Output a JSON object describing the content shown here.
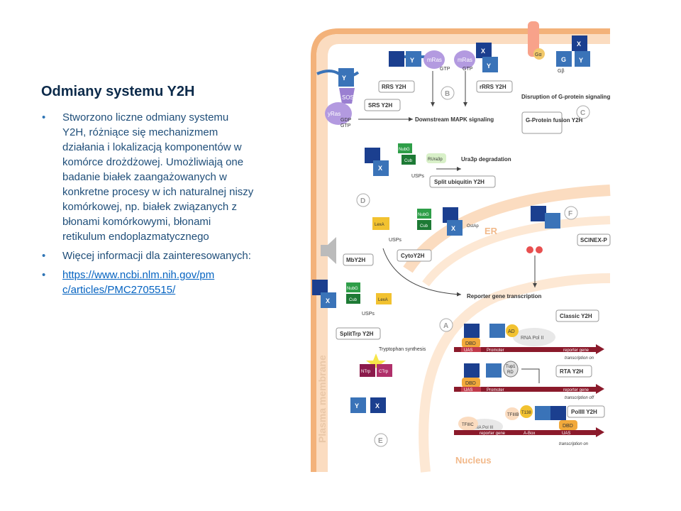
{
  "slide": {
    "title": "Odmiany systemu Y2H",
    "bullets": [
      "Stworzono liczne odmiany systemu Y2H, różniące się mechanizmem działania i lokalizacją komponentów w komórce drożdżowej. Umożliwiają one badanie białek zaangażowanych w konkretne procesy w ich naturalnej niszy komórkowej, np. białek związanych z błonami komórkowymi, błonami retikulum endoplazmatycznego",
      "Więcej informacji dla zainteresowanych:"
    ],
    "link": "https://www.ncbi.nlm.nih.gov/pmc/articles/PMC2705515/",
    "link_lines": [
      "https://www.ncbi.nlm.nih.gov/pm",
      "c/articles/PMC2705515/"
    ]
  },
  "figure": {
    "panel_letters": [
      "A",
      "B",
      "C",
      "D",
      "E",
      "F"
    ],
    "compartments": {
      "plasma_membrane": "Plasma membrane",
      "er": "ER",
      "nucleus": "Nucleus"
    },
    "callouts": {
      "rrs": "RRS Y2H",
      "srs": "SRS Y2H",
      "rras": "rRRS Y2H",
      "gprotein": "G-Protein fusion Y2H",
      "split_ubiquitin": "Split ubiquitin Y2H",
      "cyto": "CytoY2H",
      "mby": "MbY2H",
      "scinex": "SCINEX-P",
      "classic": "Classic Y2H",
      "rta": "RTA Y2H",
      "pol3": "PolIII Y2H",
      "splittrp": "SplitTrp Y2H"
    },
    "labels": {
      "mapk": "Downstream MAPK signaling",
      "disruption": "Disruption of G-protein signaling",
      "ura3p": "Ura3p degradation",
      "reporter_tx": "Reporter gene transcription",
      "tryptophan": "Tryptophan synthesis",
      "usps": "USPs",
      "gdp": "GDP",
      "gtp": "GTP",
      "sos": "SOS",
      "yras": "yRas",
      "mras": "mRas",
      "nubg": "NubG",
      "cub": "Cub",
      "rura3p": "RUra3p",
      "ostap": "OstAp",
      "lexa": "LexA",
      "dbd": "DBD",
      "uas": "UAS",
      "promoter": "Promoter",
      "reporter_gene": "reporter gene",
      "ad": "AD",
      "rna_pol_ii": "RNA Pol II",
      "rna_pol_iii": "RNA Pol III",
      "tup1_rd": [
        "Tup1",
        "RD"
      ],
      "abox": "A-Box",
      "tx_on": "transcription on",
      "tx_off": "transcription off",
      "tfiiic": "TFIIIC",
      "tfiiib": "TFIIIB",
      "tfiiib_sub": "T138",
      "ntrp": "NTrp",
      "ctrp": "CTrp",
      "x": "X",
      "y": "Y",
      "g": "G",
      "ga": "Gα",
      "gb": "Gβ"
    },
    "colors": {
      "membrane": "#f8c9a0",
      "membrane_dark": "#f3b27a",
      "puzzle_x": "#1b3f8f",
      "puzzle_y": "#3a73b8",
      "ras": "#9a7fd1",
      "nubg": "#2e9e48",
      "dna": "#8b1a2b",
      "dbd": "#f2a93b",
      "text": "#333333"
    }
  }
}
